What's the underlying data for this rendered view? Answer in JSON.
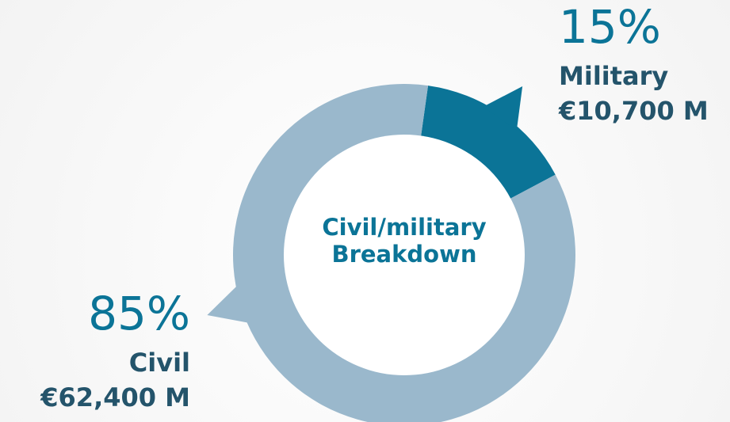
{
  "chart_data": {
    "type": "pie",
    "donut": true,
    "title": "Civil/military Breakdown",
    "categories": [
      "Military",
      "Civil"
    ],
    "values": [
      15,
      85
    ],
    "value_labels": [
      "15%",
      "85%"
    ],
    "amounts": [
      10700,
      62400
    ],
    "amount_labels": [
      "€10,700 M",
      "€62,400 M"
    ],
    "colors": [
      "#0b7497",
      "#9ab8cc"
    ]
  }
}
